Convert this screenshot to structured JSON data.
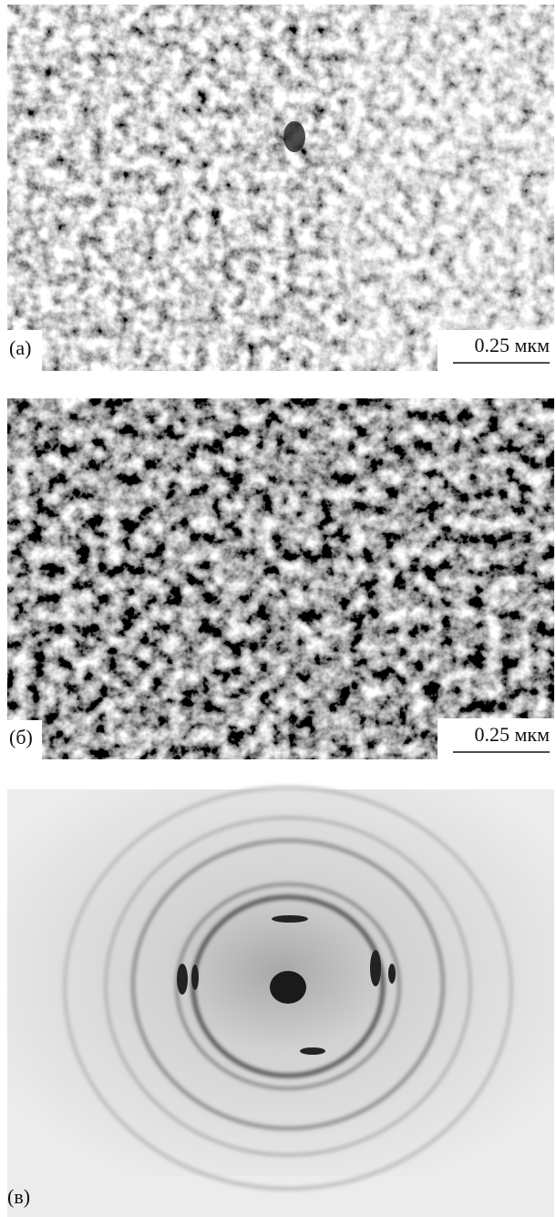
{
  "panels": [
    {
      "label": "(а)",
      "scale_bar": "0.25 мкм"
    },
    {
      "label": "(б)",
      "scale_bar": "0.25 мкм"
    },
    {
      "label": "(в)"
    }
  ]
}
